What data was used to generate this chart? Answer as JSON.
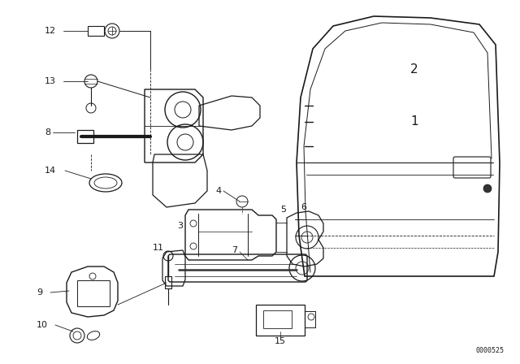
{
  "bg_color": "#ffffff",
  "diagram_id": "0000525",
  "dark": "#1a1a1a",
  "lw_main": 1.0,
  "lw_thin": 0.6,
  "label_fs": 8,
  "fig_w": 6.4,
  "fig_h": 4.48,
  "dpi": 100
}
